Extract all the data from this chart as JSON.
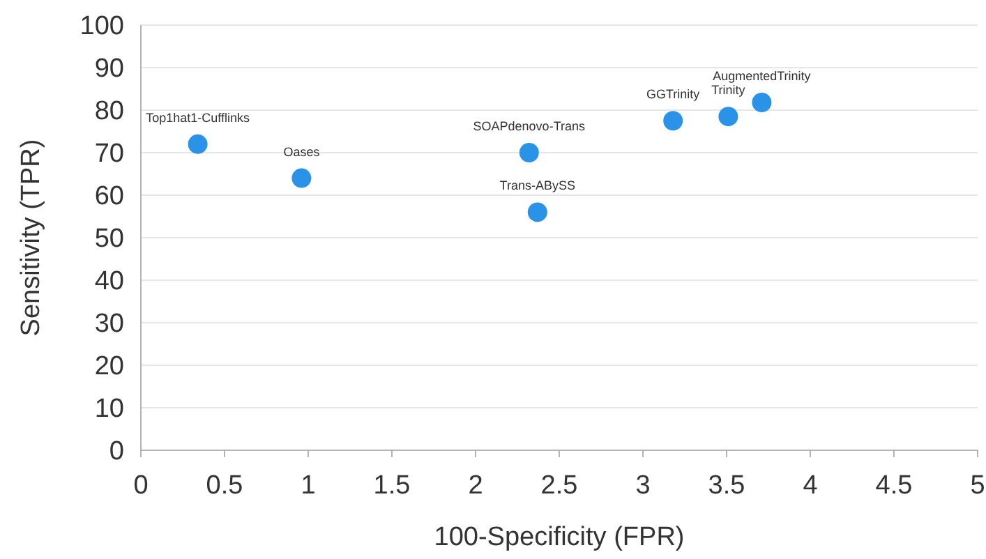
{
  "chart_data": {
    "type": "scatter",
    "xlabel": "100-Specificity (FPR)",
    "ylabel": "Sensitivity (TPR)",
    "x": [
      0.34,
      0.96,
      2.32,
      2.37,
      3.18,
      3.51,
      3.71
    ],
    "series": [
      {
        "color": "#2a93e8",
        "values": [
          72,
          64,
          70,
          56,
          77.5,
          78.5,
          81.8
        ]
      }
    ],
    "annotations": [
      {
        "text": "Top1hat1-Cufflinks",
        "x": 0.34,
        "y": 72
      },
      {
        "text": "Oases",
        "x": 0.96,
        "y": 64
      },
      {
        "text": "SOAPdenovo-Trans",
        "x": 2.32,
        "y": 70
      },
      {
        "text": "Trans-ABySS",
        "x": 2.37,
        "y": 56
      },
      {
        "text": "GGTrinity",
        "x": 3.18,
        "y": 77.5
      },
      {
        "text": "Trinity",
        "x": 3.51,
        "y": 78.5
      },
      {
        "text": "AugmentedTrinity",
        "x": 3.71,
        "y": 81.8
      }
    ],
    "xlim": [
      0,
      5
    ],
    "xticks": [
      0,
      0.5,
      1,
      1.5,
      2,
      2.5,
      3,
      3.5,
      4,
      4.5,
      5
    ],
    "ylim": [
      0,
      100
    ],
    "yticks": [
      0,
      10,
      20,
      30,
      40,
      50,
      60,
      70,
      80,
      90,
      100
    ],
    "grid": "y",
    "marker": "circle"
  }
}
